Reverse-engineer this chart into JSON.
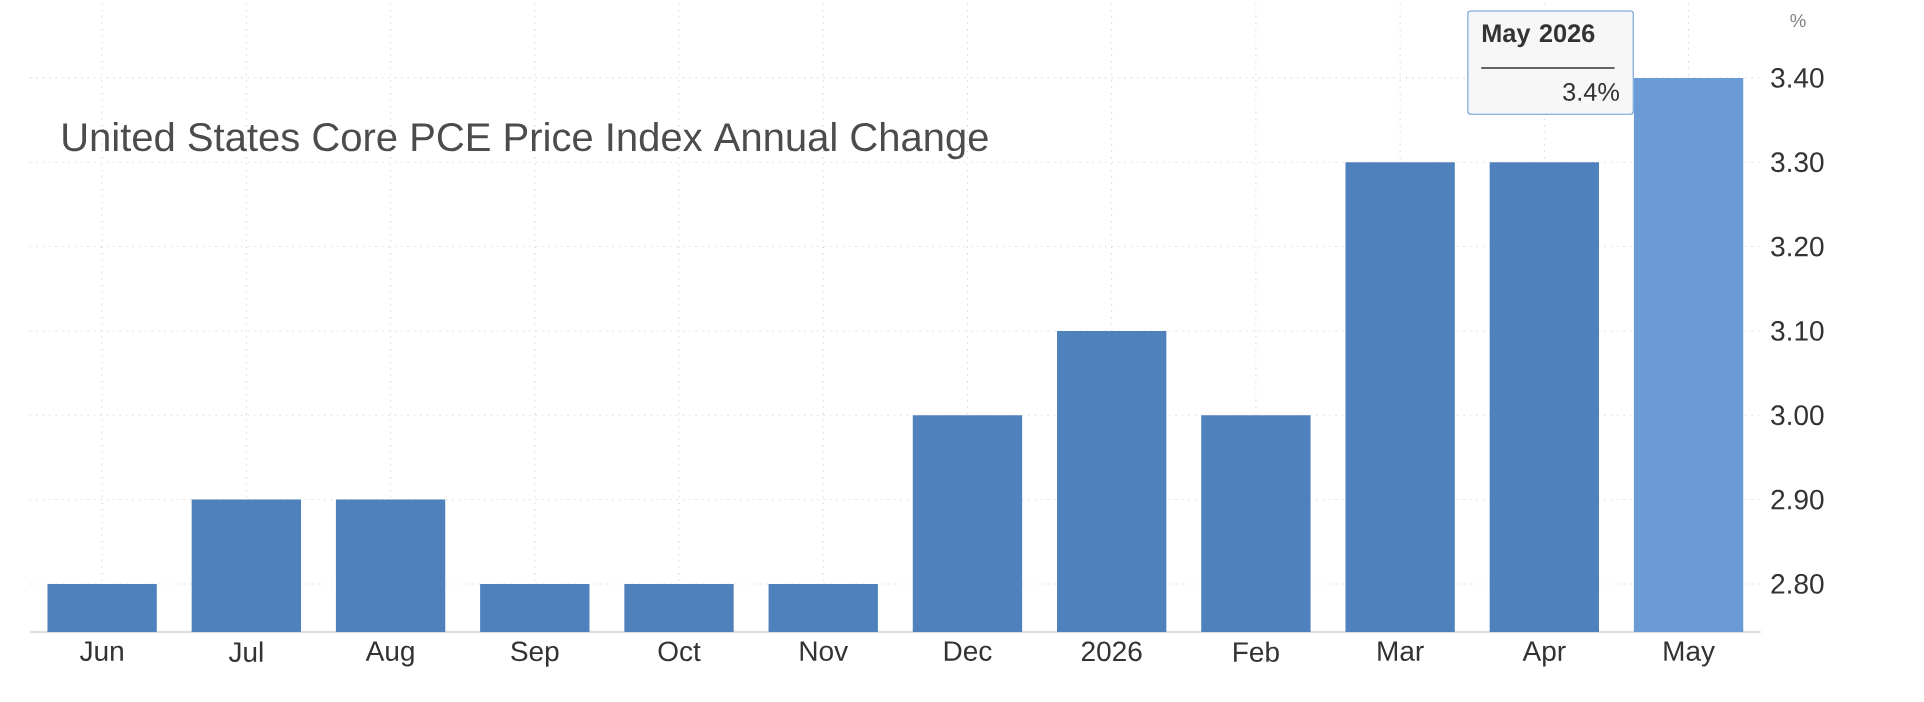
{
  "chart_data": {
    "type": "bar",
    "title": "United States Core PCE Price Index Annual Change",
    "ylabel": "%",
    "categories": [
      "Jun",
      "Jul",
      "Aug",
      "Sep",
      "Oct",
      "Nov",
      "Dec",
      "2026",
      "Feb",
      "Mar",
      "Apr",
      "May"
    ],
    "values": [
      2.8,
      2.9,
      2.9,
      2.8,
      2.8,
      2.8,
      3.0,
      3.1,
      3.0,
      3.3,
      3.3,
      3.4
    ],
    "colors": [
      "#4f81bd",
      "#4f81bd",
      "#4f81bd",
      "#4f81bd",
      "#4f81bd",
      "#4f81bd",
      "#4f81bd",
      "#4f81bd",
      "#4f81bd",
      "#4f81bd",
      "#4f81bd",
      "#6a9bd6"
    ],
    "ylim": [
      2.743,
      3.49
    ],
    "yticks": [
      {
        "value": 2.8,
        "label": "2.80"
      },
      {
        "value": 2.9,
        "label": "2.90"
      },
      {
        "value": 3.0,
        "label": "3.00"
      },
      {
        "value": 3.1,
        "label": "3.10"
      },
      {
        "value": 3.2,
        "label": "3.20"
      },
      {
        "value": 3.3,
        "label": "3.30"
      },
      {
        "value": 3.4,
        "label": "3.40"
      }
    ],
    "grid": true,
    "annotations": [
      "May 2026",
      "3.4%"
    ]
  }
}
